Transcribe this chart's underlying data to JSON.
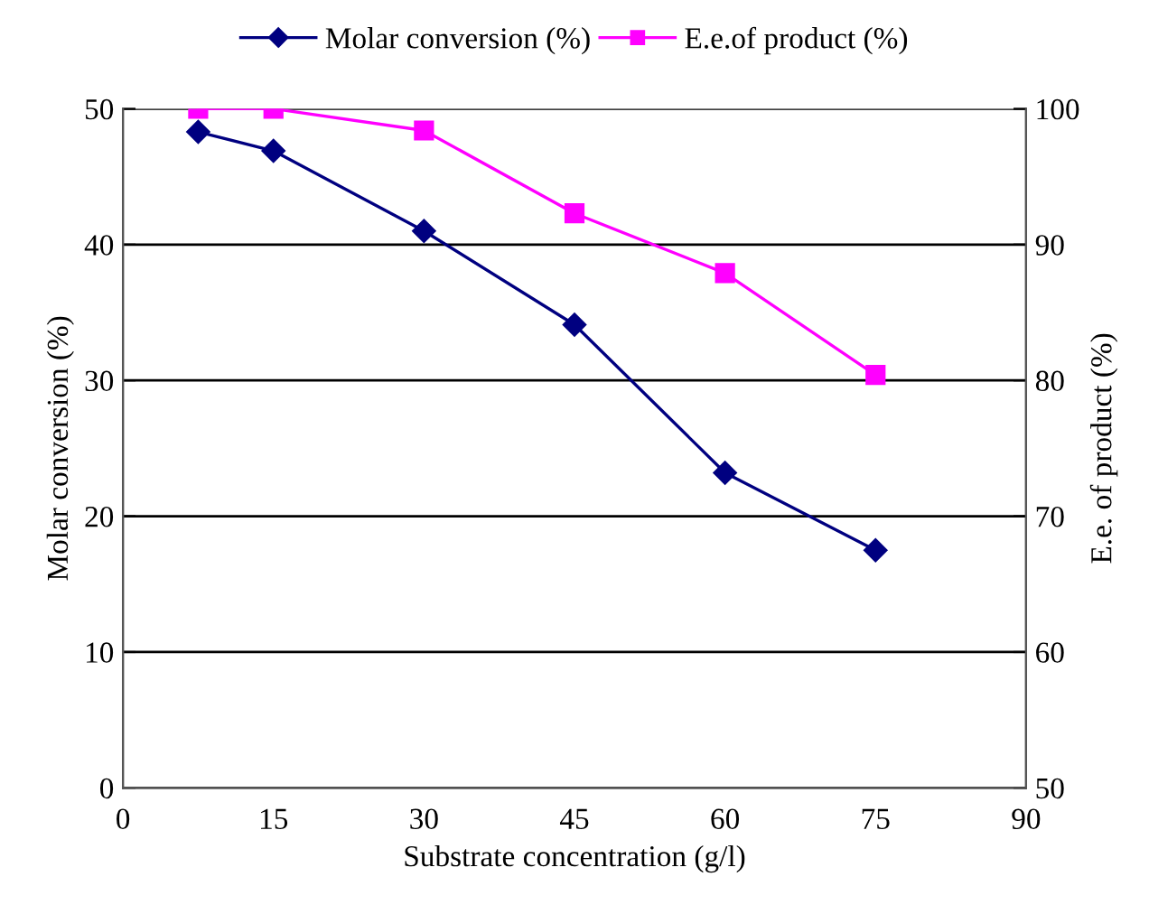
{
  "chart_data": {
    "type": "line",
    "xlabel": "Substrate concentration (g/l)",
    "ylabel": "Molar conversion (%)",
    "y2label": "E.e. of product (%)",
    "x": [
      7.5,
      15,
      30,
      45,
      60,
      75
    ],
    "series": [
      {
        "name": "Molar conversion (%)",
        "color": "#000080",
        "marker": "diamond",
        "values": [
          48.3,
          46.9,
          41.0,
          34.1,
          23.2,
          17.5
        ]
      },
      {
        "name": "E.e.of product (%)",
        "color": "#ff00ff",
        "marker": "square",
        "axis": "y2",
        "values": [
          100,
          100,
          98.4,
          92.3,
          87.9,
          80.4
        ]
      }
    ],
    "xlim": [
      0,
      90
    ],
    "xticks": [
      0,
      15,
      30,
      45,
      60,
      75,
      90
    ],
    "ylim": [
      0,
      50
    ],
    "yticks": [
      0,
      10,
      20,
      30,
      40,
      50
    ],
    "y2lim": [
      50,
      100
    ],
    "y2ticks": [
      50,
      60,
      70,
      80,
      90,
      100
    ],
    "grid": "y",
    "legend": "top",
    "line_style": "solid"
  }
}
